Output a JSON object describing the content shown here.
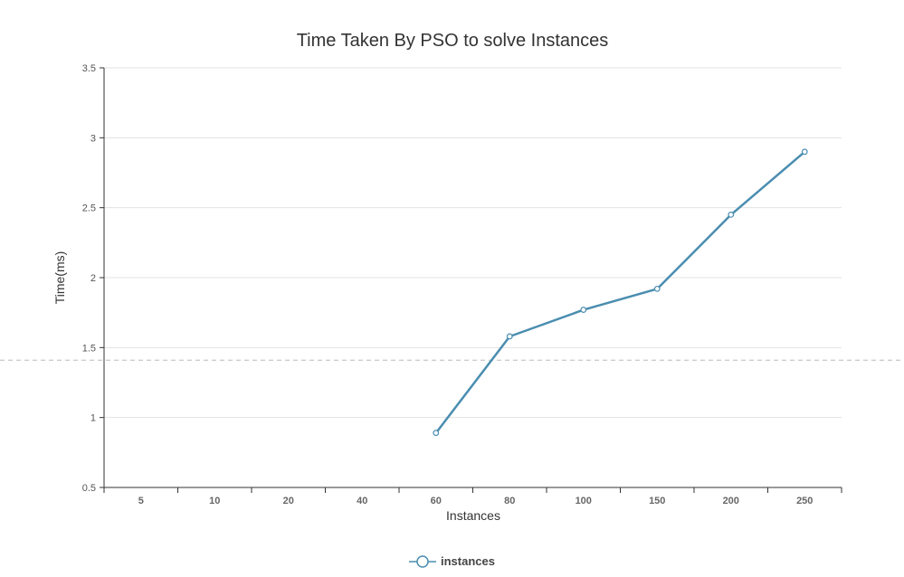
{
  "chart_data": {
    "type": "line",
    "title": "Time Taken By PSO to solve Instances",
    "xlabel": "Instances",
    "ylabel": "Time(ms)",
    "categories": [
      "5",
      "10",
      "20",
      "40",
      "60",
      "80",
      "100",
      "150",
      "200",
      "250"
    ],
    "y_ticks": [
      "0.5",
      "1",
      "1.5",
      "2",
      "2.5",
      "3",
      "3.5"
    ],
    "ylim": [
      0.5,
      3.5
    ],
    "grid": true,
    "legend_position": "bottom",
    "series": [
      {
        "name": "instances",
        "color": "#4a8db0",
        "values": [
          null,
          null,
          null,
          null,
          0.89,
          1.58,
          1.77,
          1.92,
          2.45,
          2.9
        ]
      }
    ],
    "reference_line": {
      "y": 1.41
    }
  }
}
